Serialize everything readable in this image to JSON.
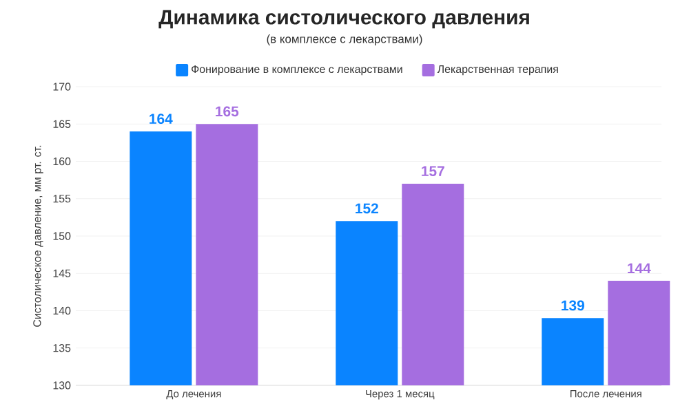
{
  "chart_data": {
    "type": "bar",
    "title": "Динамика систолического давления",
    "subtitle": "(в комплексе с лекарствами)",
    "ylabel": "Систолическое давление, мм рт. ст.",
    "categories": [
      "До лечения",
      "Через 1 месяц",
      "После лечения"
    ],
    "series": [
      {
        "name": "Фонирование в комплексе с лекарствами",
        "color": "#0a84ff",
        "values": [
          164,
          152,
          139
        ]
      },
      {
        "name": "Лекарственная терапия",
        "color": "#a56ee0",
        "values": [
          165,
          157,
          144
        ]
      }
    ],
    "ylim": [
      130,
      170
    ],
    "yticks": [
      130,
      135,
      140,
      145,
      150,
      155,
      160,
      165,
      170
    ],
    "grid": "y",
    "legend": "top",
    "data_labels": true
  }
}
